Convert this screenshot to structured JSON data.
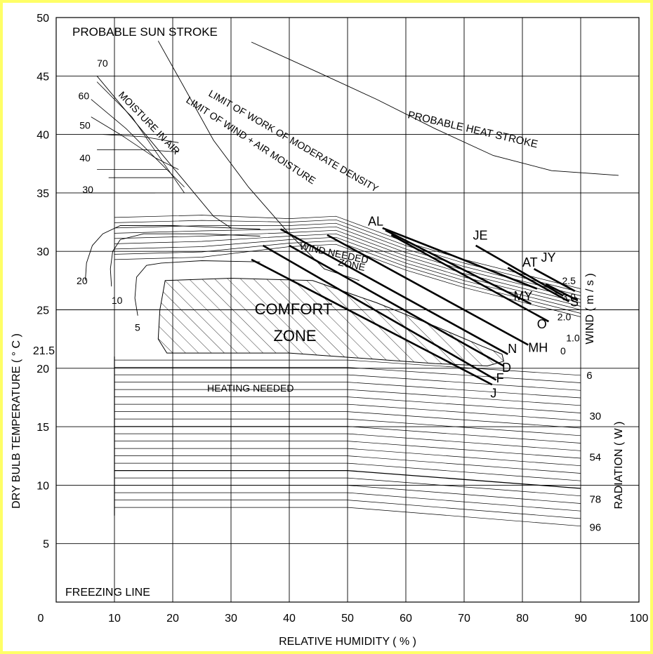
{
  "chart_data": {
    "type": "line",
    "xlabel": "RELATIVE HUMIDITY  ( % )",
    "ylabel": "DRY BULB TEMPERATURE  ( ° C )",
    "xlim": [
      0,
      100
    ],
    "ylim": [
      0,
      50
    ],
    "x_ticks": [
      0,
      10,
      20,
      30,
      40,
      50,
      60,
      70,
      80,
      90,
      100
    ],
    "y_ticks": [
      5,
      10,
      15,
      20,
      25,
      30,
      35,
      40,
      45,
      50
    ],
    "y_ticks_extra": [
      "21.5"
    ],
    "grid": true,
    "y_zero_label": "0",
    "region_labels": {
      "sun_stroke": "PROBABLE SUN STROKE",
      "heat_stroke": "PROBABLE  HEAT  STROKE",
      "moisture": "MOISTURE IN AIR",
      "work_limit": "LIMIT OF WORK OF MODERATE DENSITY",
      "wind_limit": "LIMIT OF WIND + AIR MOISTURE",
      "wind_needed_1": "WIND NEEDED",
      "wind_needed_2": "ZONE",
      "comfort_1": "COMFORT",
      "comfort_2": "ZONE",
      "heating": "HEATING  NEEDED",
      "freezing": "FREEZING LINE"
    },
    "scale_titles": {
      "wind": "WIND ( m / s )",
      "radiation": "RADIATION  ( W )"
    },
    "moisture_labels": [
      {
        "label": "70",
        "x": 7,
        "y": 45.8
      },
      {
        "label": "60",
        "x": 3.8,
        "y": 43
      },
      {
        "label": "50",
        "x": 4,
        "y": 40.5
      },
      {
        "label": "40",
        "x": 4,
        "y": 37.7
      },
      {
        "label": "30",
        "x": 4.5,
        "y": 35
      },
      {
        "label": "20",
        "x": 3.5,
        "y": 27.2
      },
      {
        "label": "10",
        "x": 9.5,
        "y": 25.5
      },
      {
        "label": "5",
        "x": 13.5,
        "y": 23.2
      }
    ],
    "wind_labels": [
      {
        "label": "2.5",
        "x": 86.8,
        "y": 27.2
      },
      {
        "label": "3.0",
        "x": 86.8,
        "y": 25.8
      },
      {
        "label": "2.0",
        "x": 86,
        "y": 24.1
      },
      {
        "label": "1.0",
        "x": 87.5,
        "y": 22.3
      },
      {
        "label": "0",
        "x": 86.5,
        "y": 21.2
      }
    ],
    "radiation_labels": [
      {
        "label": "6",
        "x": 91,
        "y": 19.1
      },
      {
        "label": "30",
        "x": 91.5,
        "y": 15.6
      },
      {
        "label": "54",
        "x": 91.5,
        "y": 12.1
      },
      {
        "label": "78",
        "x": 91.5,
        "y": 8.5
      },
      {
        "label": "96",
        "x": 91.5,
        "y": 6.1
      }
    ],
    "series": [
      {
        "name": "J",
        "x": [
          33.5,
          74.8
        ],
        "y": [
          29.3,
          18.6
        ],
        "label_x": 74.5,
        "label_y": 17.5
      },
      {
        "name": "F",
        "x": [
          35.5,
          75.5
        ],
        "y": [
          30.5,
          19
        ],
        "label_x": 75.5,
        "label_y": 18.8
      },
      {
        "name": "D",
        "x": [
          40,
          76.8
        ],
        "y": [
          30.5,
          20.2
        ],
        "label_x": 76.5,
        "label_y": 19.7
      },
      {
        "name": "N",
        "x": [
          38.5,
          77.5
        ],
        "y": [
          31.9,
          21.2
        ],
        "label_x": 77.5,
        "label_y": 21.3
      },
      {
        "name": "MH",
        "x": [
          46.5,
          81
        ],
        "y": [
          31.4,
          22
        ],
        "label_x": 81,
        "label_y": 21.4
      },
      {
        "name": "O",
        "x": [
          57.5,
          84.5
        ],
        "y": [
          31.4,
          24
        ],
        "label_x": 82.5,
        "label_y": 23.4
      },
      {
        "name": "MY",
        "x": [
          56.5,
          81.5
        ],
        "y": [
          31.8,
          25.5
        ],
        "label_x": 78.5,
        "label_y": 25.8
      },
      {
        "name": "AL",
        "x": [
          56,
          82.5
        ],
        "y": [
          32,
          26.8
        ],
        "label_x": 53.5,
        "label_y": 32.2
      },
      {
        "name": "JE",
        "x": [
          72,
          87
        ],
        "y": [
          30.5,
          26.2
        ],
        "label_x": 71.5,
        "label_y": 31
      },
      {
        "name": "AT",
        "x": [
          77.5,
          88
        ],
        "y": [
          28.6,
          25.7
        ],
        "label_x": 80,
        "label_y": 28.7
      },
      {
        "name": "JY",
        "x": [
          82,
          89
        ],
        "y": [
          28.5,
          26.6
        ],
        "label_x": 83.2,
        "label_y": 29.1
      },
      {
        "name": "S",
        "x": [
          84,
          89.5
        ],
        "y": [
          27.2,
          25.8
        ],
        "label_x": 88.2,
        "label_y": 25.3
      }
    ]
  }
}
